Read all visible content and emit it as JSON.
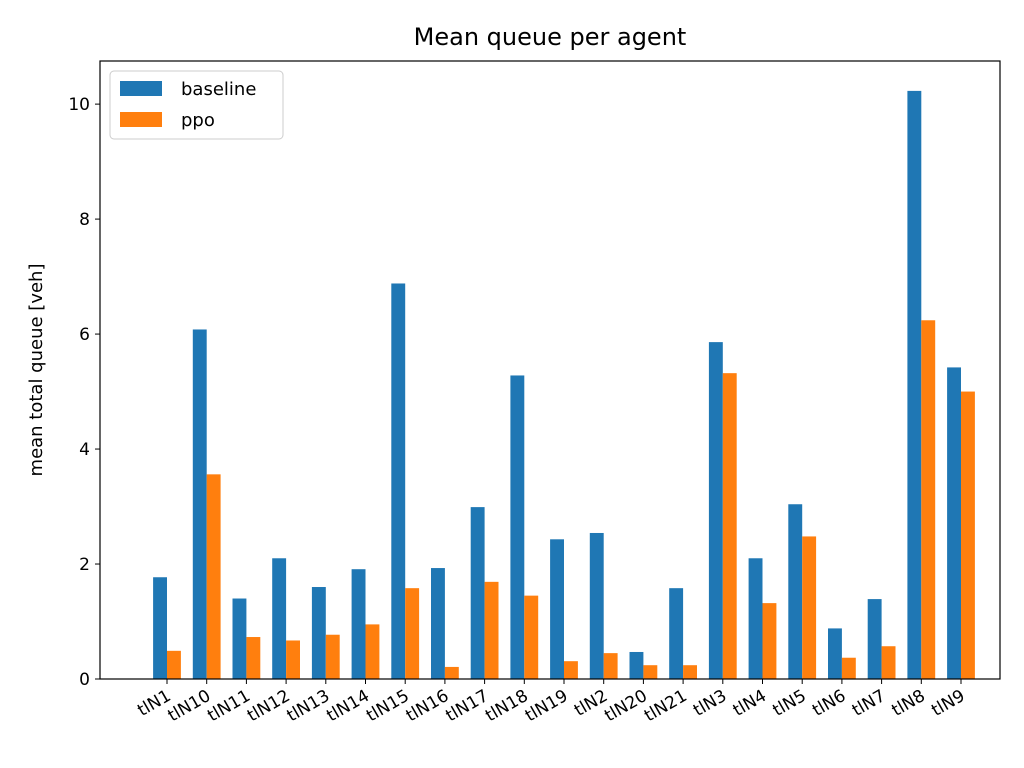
{
  "chart_data": {
    "type": "bar",
    "title": "Mean queue per agent",
    "xlabel": "",
    "ylabel": "mean total queue [veh]",
    "ylim": [
      0,
      10.75
    ],
    "yticks": [
      0,
      2,
      4,
      6,
      8,
      10
    ],
    "ytick_labels": [
      "0",
      "2",
      "4",
      "6",
      "8",
      "10"
    ],
    "grid": false,
    "legend_position": "top-left",
    "categories": [
      "tlN1",
      "tlN10",
      "tlN11",
      "tlN12",
      "tlN13",
      "tlN14",
      "tlN15",
      "tlN16",
      "tlN17",
      "tlN18",
      "tlN19",
      "tlN2",
      "tlN20",
      "tlN21",
      "tlN3",
      "tlN4",
      "tlN5",
      "tlN6",
      "tlN7",
      "tlN8",
      "tlN9"
    ],
    "series": [
      {
        "name": "baseline",
        "color": "#1f77b4",
        "values": [
          1.77,
          6.08,
          1.4,
          2.1,
          1.6,
          1.91,
          6.88,
          1.93,
          2.99,
          5.28,
          2.43,
          2.54,
          0.47,
          1.58,
          5.86,
          2.1,
          3.04,
          0.88,
          1.39,
          10.23,
          5.42
        ]
      },
      {
        "name": "ppo",
        "color": "#ff7f0e",
        "values": [
          0.49,
          3.56,
          0.73,
          0.67,
          0.77,
          0.95,
          1.58,
          0.21,
          1.69,
          1.45,
          0.31,
          0.45,
          0.24,
          0.24,
          5.32,
          1.32,
          2.48,
          0.37,
          0.57,
          6.24,
          5.0
        ]
      }
    ]
  }
}
